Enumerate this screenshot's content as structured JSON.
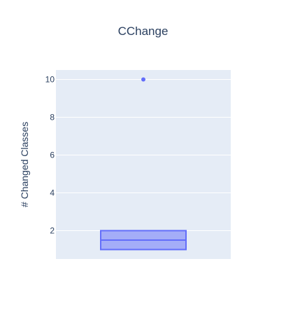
{
  "chart_data": {
    "type": "box",
    "title": "CChange",
    "xlabel": "",
    "ylabel": "# Changed Classes",
    "ylim": [
      0.5,
      10.5
    ],
    "yticks": [
      2,
      4,
      6,
      8,
      10
    ],
    "grid": true,
    "series": [
      {
        "q1": 1,
        "median": 1.5,
        "q3": 2,
        "whisker_low": 1,
        "whisker_high": 2,
        "outliers": [
          10
        ],
        "color": "#636efa"
      }
    ]
  },
  "colors": {
    "plot_bg": "#e5ecf6",
    "grid": "#ffffff",
    "text": "#2a3f5f",
    "box_fill": "rgba(99,110,250,0.5)",
    "box_line": "#636efa"
  }
}
